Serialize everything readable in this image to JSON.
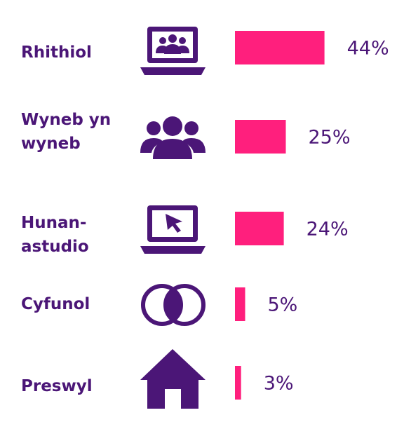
{
  "chart_data": {
    "type": "bar",
    "orientation": "horizontal",
    "categories": [
      "Rhithiol",
      "Wyneb yn wyneb",
      "Hunan-astudio",
      "Cyfunol",
      "Preswyl"
    ],
    "values": [
      44,
      25,
      24,
      5,
      3
    ],
    "value_labels": [
      "44%",
      "25%",
      "24%",
      "5%",
      "3%"
    ],
    "color": "#ff1f7d"
  }
}
